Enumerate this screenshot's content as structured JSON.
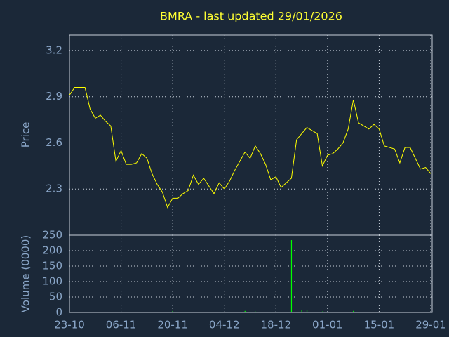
{
  "chart_data": [
    {
      "type": "line",
      "title": "BMRA - last updated 29/01/2026",
      "y_label": "Price",
      "color": "#ffff00",
      "values": [
        2.91,
        2.96,
        2.96,
        2.96,
        2.82,
        2.76,
        2.78,
        2.74,
        2.71,
        2.48,
        2.55,
        2.46,
        2.46,
        2.47,
        2.53,
        2.5,
        2.4,
        2.33,
        2.28,
        2.18,
        2.24,
        2.24,
        2.27,
        2.29,
        2.39,
        2.33,
        2.37,
        2.32,
        2.27,
        2.34,
        2.3,
        2.35,
        2.42,
        2.48,
        2.54,
        2.5,
        2.58,
        2.53,
        2.46,
        2.36,
        2.38,
        2.31,
        2.34,
        2.37,
        2.62,
        2.66,
        2.7,
        2.68,
        2.66,
        2.45,
        2.52,
        2.53,
        2.56,
        2.6,
        2.69,
        2.88,
        2.73,
        2.71,
        2.69,
        2.72,
        2.69,
        2.58,
        2.57,
        2.56,
        2.47,
        2.57,
        2.57,
        2.5,
        2.43,
        2.44,
        2.4
      ],
      "ylim": [
        2.0,
        3.3
      ],
      "yticks": [
        2.3,
        2.6,
        2.9,
        3.2
      ],
      "grid": true
    },
    {
      "type": "bar",
      "y_label": "Volume (0000)",
      "color": "#00ff00",
      "categories": [
        "23-10",
        null,
        null,
        null,
        null,
        null,
        null,
        null,
        null,
        null,
        "06-11",
        null,
        null,
        null,
        null,
        null,
        null,
        null,
        null,
        null,
        "20-11",
        null,
        null,
        null,
        null,
        null,
        null,
        null,
        null,
        null,
        "04-12",
        null,
        null,
        null,
        null,
        null,
        null,
        null,
        null,
        null,
        "18-12",
        null,
        null,
        null,
        null,
        null,
        null,
        null,
        null,
        null,
        "01-01",
        null,
        null,
        null,
        null,
        null,
        null,
        null,
        null,
        null,
        "15-01",
        null,
        null,
        null,
        null,
        null,
        null,
        null,
        null,
        null,
        "29-01"
      ],
      "values": [
        1,
        1,
        1,
        1,
        2,
        1,
        1,
        1,
        1,
        2,
        1,
        1,
        1,
        1,
        1,
        1,
        1,
        1,
        1,
        1,
        5,
        1,
        1,
        1,
        1,
        1,
        1,
        1,
        1,
        1,
        1,
        1,
        1,
        1,
        5,
        1,
        3,
        1,
        1,
        1,
        1,
        1,
        1,
        234,
        1,
        8,
        7,
        1,
        2,
        3,
        1,
        1,
        1,
        1,
        2,
        5,
        2,
        1,
        1,
        1,
        1,
        1,
        1,
        1,
        1,
        2,
        1,
        1,
        1,
        1,
        2
      ],
      "ylim": [
        0,
        250
      ],
      "yticks": [
        0,
        50,
        100,
        150,
        200,
        250
      ],
      "grid": true
    }
  ]
}
